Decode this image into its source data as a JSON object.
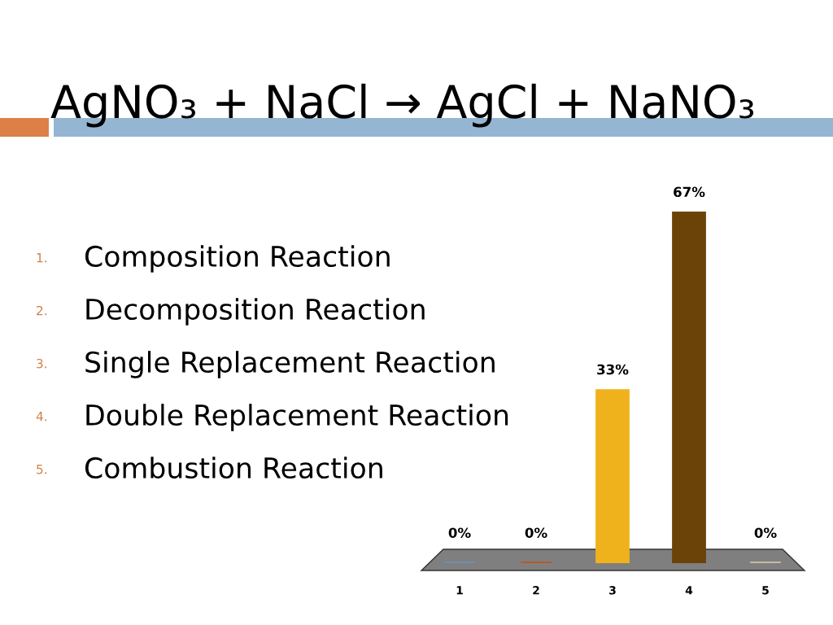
{
  "chart_data": {
    "type": "bar",
    "title": "AgNO₃ + NaCl → AgCl + NaNO₃",
    "annotations": [
      "1. Composition Reaction",
      "2. Decomposition Reaction",
      "3. Single Replacement Reaction",
      "4. Double Replacement Reaction",
      "5. Combustion Reaction"
    ],
    "categories": [
      "1",
      "2",
      "3",
      "4",
      "5"
    ],
    "values": [
      0,
      0,
      33,
      67,
      0
    ],
    "colors": [
      "#6f8fae",
      "#b8582a",
      "#f0b21c",
      "#6b4207",
      "#c4bca6"
    ],
    "value_labels": [
      "0%",
      "0%",
      "33%",
      "67%",
      "0%"
    ]
  }
}
